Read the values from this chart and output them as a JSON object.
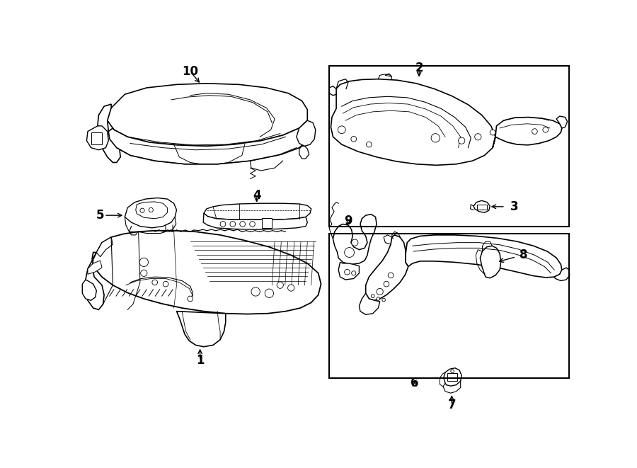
{
  "bg_color": "#ffffff",
  "line_color": "#000000",
  "box_color": "#000000",
  "fig_width": 9.0,
  "fig_height": 6.61,
  "dpi": 100
}
